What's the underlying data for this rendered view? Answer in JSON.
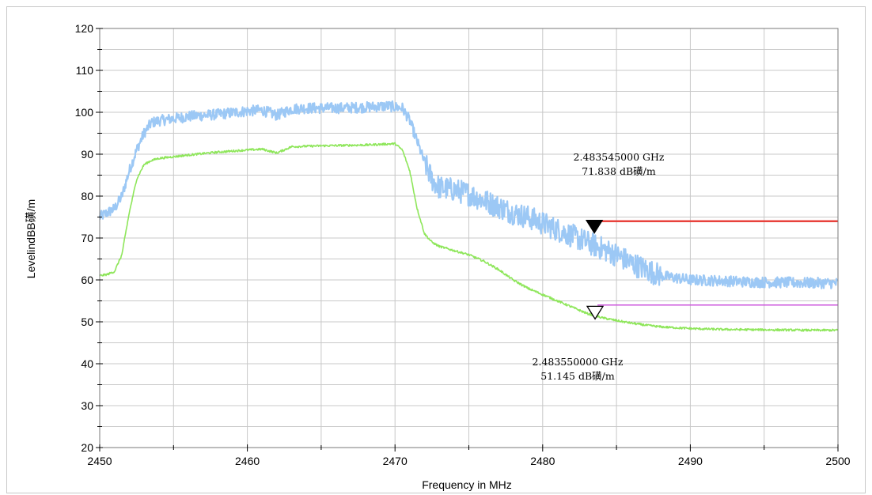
{
  "chart_data": {
    "type": "line",
    "xlabel": "Frequency in MHz",
    "ylabel": "Level in dBµV/m",
    "xlim": [
      2450,
      2500
    ],
    "ylim": [
      20,
      120
    ],
    "x_ticks": [
      2450,
      2460,
      2470,
      2480,
      2490,
      2500
    ],
    "y_ticks": [
      20,
      30,
      40,
      50,
      60,
      70,
      80,
      90,
      100,
      110,
      120
    ],
    "grid": true,
    "colors": {
      "peak": "#9cc8f5",
      "average": "#8ee65a",
      "limit_peak": "#e8423c",
      "limit_average": "#cc55dd"
    },
    "series": [
      {
        "x": [
          2450.0,
          2450.5,
          2451.0,
          2451.5,
          2452.0,
          2452.5,
          2453.0,
          2453.5,
          2454.0,
          2455.0,
          2456.0,
          2458.0,
          2460.0,
          2461.0,
          2462.0,
          2463.0,
          2464.0,
          2466.0,
          2468.0,
          2469.5,
          2470.5,
          2471.0,
          2471.5,
          2472.0,
          2472.5,
          2473.0,
          2474.0,
          2475.0,
          2476.0,
          2477.0,
          2478.0,
          2479.0,
          2480.0,
          2481.0,
          2482.0,
          2483.0,
          2484.0,
          2485.0,
          2486.0,
          2487.0,
          2488.0,
          2489.0,
          2490.0,
          2492.0,
          2494.0,
          2496.0,
          2498.0,
          2500.0
        ],
        "values": [
          75,
          76,
          77,
          80,
          86,
          91,
          95,
          97.5,
          98,
          98.5,
          99,
          99.5,
          100.3,
          100.5,
          99.3,
          100.8,
          101,
          101,
          101.2,
          101.5,
          101,
          98,
          93,
          88,
          84,
          82,
          81.5,
          80.5,
          79,
          77.5,
          76,
          75,
          73.5,
          72,
          70.5,
          69,
          67.5,
          66,
          64,
          62.5,
          61,
          60.5,
          60,
          59.8,
          59.5,
          59.4,
          59.3,
          59.2
        ],
        "noise": 1.3
      },
      {
        "x": [
          2450.0,
          2450.5,
          2451.0,
          2451.5,
          2452.0,
          2452.5,
          2453.0,
          2453.5,
          2454.0,
          2456.0,
          2458.0,
          2460.0,
          2461.0,
          2462.0,
          2463.0,
          2465.0,
          2468.0,
          2470.0,
          2470.5,
          2471.0,
          2471.5,
          2472.0,
          2472.5,
          2473.0,
          2474.0,
          2475.0,
          2476.0,
          2477.0,
          2478.0,
          2479.0,
          2480.0,
          2481.0,
          2482.0,
          2483.0,
          2484.0,
          2485.0,
          2486.0,
          2487.0,
          2488.0,
          2490.0,
          2492.0,
          2495.0,
          2498.0,
          2500.0
        ],
        "values": [
          61,
          61.3,
          62,
          66,
          76,
          84,
          87.5,
          88.5,
          89,
          89.8,
          90.5,
          91,
          91.2,
          90.3,
          91.8,
          92,
          92.2,
          92.5,
          91,
          86,
          77,
          71,
          69,
          68,
          67,
          66,
          64.5,
          62.5,
          60,
          58,
          56.5,
          55,
          53.5,
          52,
          51,
          50.3,
          49.7,
          49.2,
          48.8,
          48.4,
          48.2,
          48.1,
          48.0,
          48.0
        ],
        "noise": 0.25
      }
    ],
    "limit_lines": [
      {
        "x_start": 2483.5,
        "x_end": 2500,
        "value": 74
      },
      {
        "x_start": 2483.5,
        "x_end": 2500,
        "value": 54
      }
    ],
    "markers": [
      {
        "x": 2483.5,
        "y": 72.7,
        "filled": true,
        "label_line1": "2.483545000 GHz",
        "label_line2": "71.838 dB磺/m"
      },
      {
        "x": 2483.55,
        "y": 52.2,
        "filled": false,
        "label_line1": "2.483550000 GHz",
        "label_line2": "51.145 dB磺/m"
      }
    ],
    "ylabel_render": "LevelindBB磺/m"
  }
}
